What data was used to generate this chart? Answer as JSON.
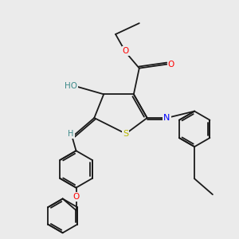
{
  "background_color": "#ebebeb",
  "figsize": [
    3.0,
    3.0
  ],
  "dpi": 100,
  "bond_color": "#1a1a1a",
  "bond_lw": 1.3,
  "atom_colors": {
    "O": "#ff0000",
    "N": "#0000ff",
    "S": "#b8b800",
    "H": "#3d8a8a",
    "C": "#1a1a1a"
  }
}
